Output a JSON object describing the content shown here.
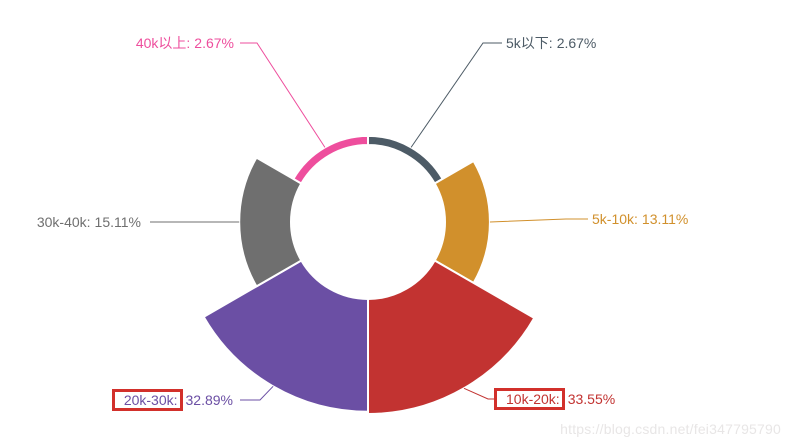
{
  "watermark": {
    "text": "https://blog.csdn.net/fei347795790",
    "color": "#e8e6e6"
  },
  "chart_data": {
    "type": "pie",
    "variant": "nightingale-rose-area",
    "title": "",
    "legend_position": "none",
    "start_angle": "top",
    "direction": "clockwise",
    "categories": [
      "5k以下",
      "5k-10k",
      "10k-20k",
      "20k-30k",
      "30k-40k",
      "40k以上"
    ],
    "values": [
      2.67,
      13.11,
      33.55,
      32.89,
      15.11,
      2.67
    ],
    "unit": "%",
    "label_format": "{name}: {percent}%",
    "highlight_box_color": "#d2302b",
    "series": [
      {
        "name": "5k以下",
        "value": 2.67,
        "label_name": "5k以下:",
        "label_value": "2.67%",
        "color": "#4d5b66",
        "highlighted": false
      },
      {
        "name": "5k-10k",
        "value": 13.11,
        "label_name": "5k-10k:",
        "label_value": "13.11%",
        "color": "#d1902c",
        "highlighted": false
      },
      {
        "name": "10k-20k",
        "value": 33.55,
        "label_name": "10k-20k:",
        "label_value": "33.55%",
        "color": "#c23331",
        "highlighted": true
      },
      {
        "name": "20k-30k",
        "value": 32.89,
        "label_name": "20k-30k:",
        "label_value": "32.89%",
        "color": "#6b4fa4",
        "highlighted": true
      },
      {
        "name": "30k-40k",
        "value": 15.11,
        "label_name": "30k-40k:",
        "label_value": "15.11%",
        "color": "#6f6f6f",
        "highlighted": false
      },
      {
        "name": "40k以上",
        "value": 2.67,
        "label_name": "40k以上:",
        "label_value": "2.67%",
        "color": "#ee4e9d",
        "highlighted": false
      }
    ]
  }
}
